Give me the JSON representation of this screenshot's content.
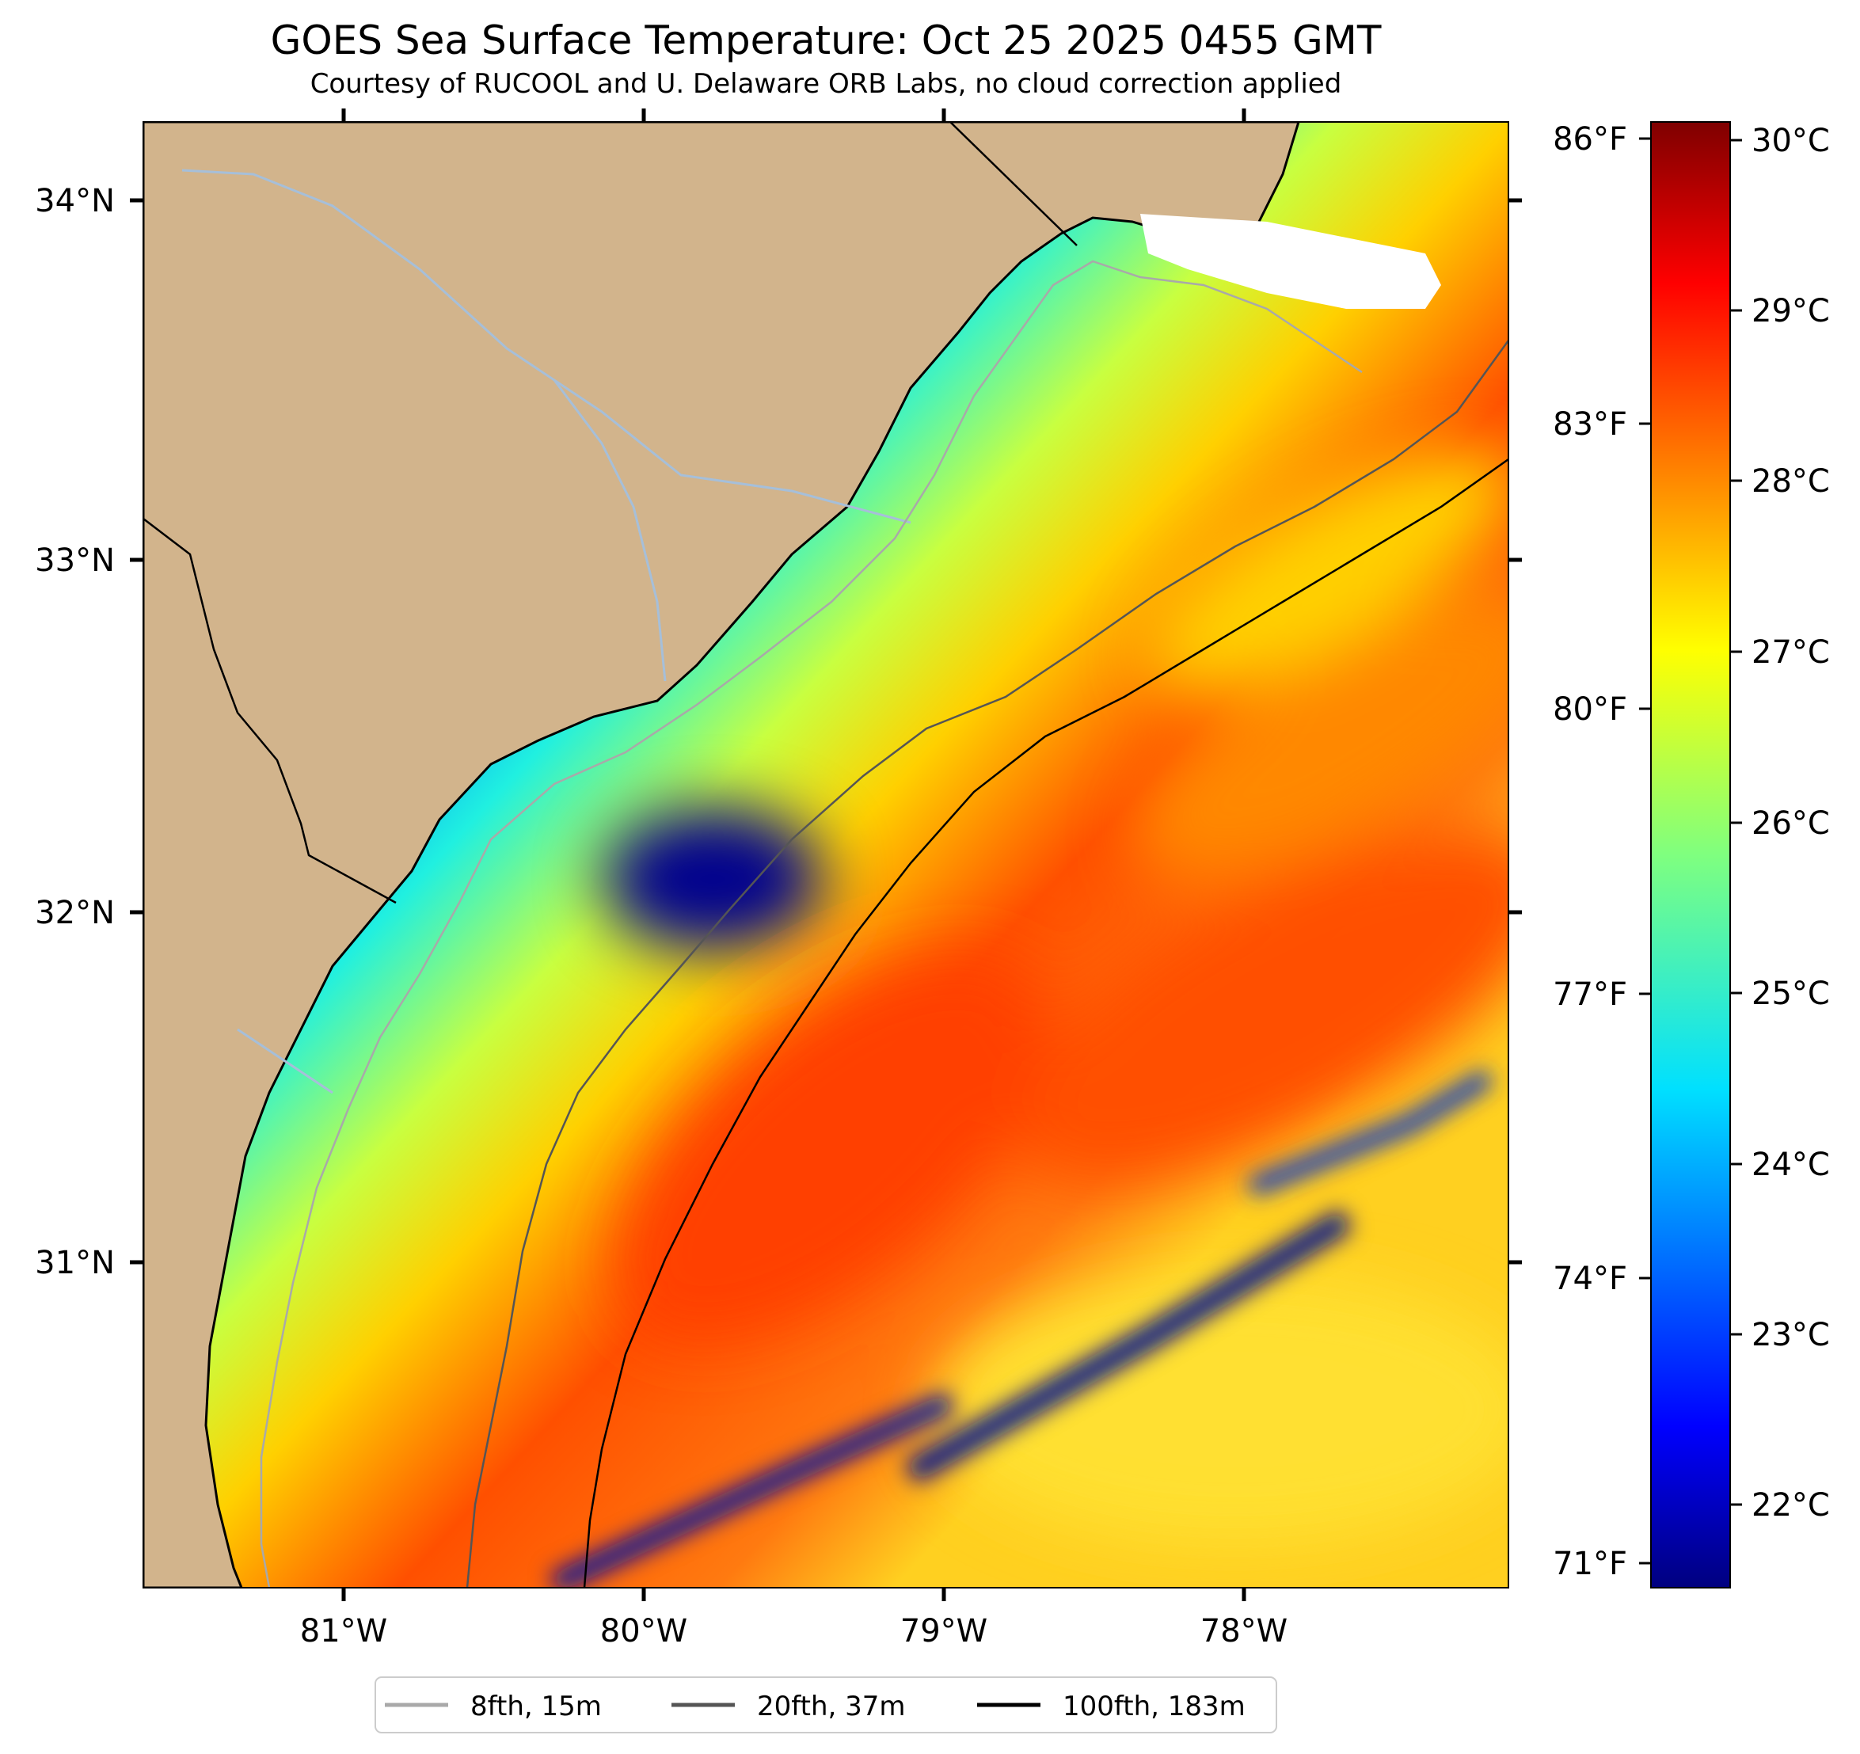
{
  "header": {
    "title": "GOES Sea Surface Temperature: Oct 25 2025 0455 GMT",
    "subtitle": "Courtesy of RUCOOL and U. Delaware ORB Labs, no cloud correction applied"
  },
  "map": {
    "lon_range": [
      -81.67,
      -77.13
    ],
    "lat_range": [
      30.1,
      34.22
    ],
    "lon_ticks": [
      "81°W",
      "80°W",
      "79°W",
      "78°W"
    ],
    "lat_ticks": [
      "34°N",
      "33°N",
      "32°N",
      "31°N"
    ],
    "land_color": "#d2b48c",
    "border_color": "#000000",
    "river_color": "#a6bfd9",
    "no_data_color": "#ffffff"
  },
  "colorbar": {
    "celsius_labels": [
      "30°C",
      "29°C",
      "28°C",
      "27°C",
      "26°C",
      "25°C",
      "24°C",
      "23°C",
      "22°C"
    ],
    "fahrenheit_labels": [
      "86°F",
      "83°F",
      "80°F",
      "77°F",
      "74°F",
      "71°F"
    ],
    "colormap": "jet",
    "range_c": [
      21.5,
      30.2
    ]
  },
  "legend": {
    "items": [
      {
        "label": "8fth, 15m",
        "color": "#a9a9a9"
      },
      {
        "label": "20fth, 37m",
        "color": "#555555"
      },
      {
        "label": "100fth, 183m",
        "color": "#000000"
      }
    ]
  }
}
